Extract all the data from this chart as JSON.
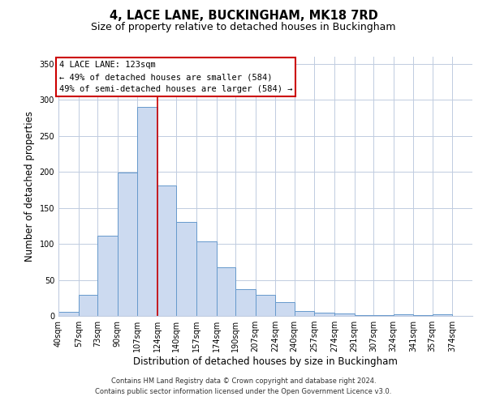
{
  "title": "4, LACE LANE, BUCKINGHAM, MK18 7RD",
  "subtitle": "Size of property relative to detached houses in Buckingham",
  "xlabel": "Distribution of detached houses by size in Buckingham",
  "ylabel": "Number of detached properties",
  "bin_labels": [
    "40sqm",
    "57sqm",
    "73sqm",
    "90sqm",
    "107sqm",
    "124sqm",
    "140sqm",
    "157sqm",
    "174sqm",
    "190sqm",
    "207sqm",
    "224sqm",
    "240sqm",
    "257sqm",
    "274sqm",
    "291sqm",
    "307sqm",
    "324sqm",
    "341sqm",
    "357sqm",
    "374sqm"
  ],
  "bin_edges": [
    40,
    57,
    73,
    90,
    107,
    124,
    140,
    157,
    174,
    190,
    207,
    224,
    240,
    257,
    274,
    291,
    307,
    324,
    341,
    357,
    374
  ],
  "bin_width": 17,
  "bar_heights": [
    6,
    29,
    111,
    199,
    290,
    181,
    130,
    103,
    68,
    37,
    29,
    19,
    7,
    5,
    3,
    1,
    1,
    2,
    1,
    2
  ],
  "bar_color": "#ccdaf0",
  "bar_edge_color": "#6699cc",
  "property_line_x": 124,
  "property_line_color": "#cc0000",
  "ylim": [
    0,
    360
  ],
  "yticks": [
    0,
    50,
    100,
    150,
    200,
    250,
    300,
    350
  ],
  "annotation_title": "4 LACE LANE: 123sqm",
  "annotation_line1": "← 49% of detached houses are smaller (584)",
  "annotation_line2": "49% of semi-detached houses are larger (584) →",
  "annotation_box_color": "#ffffff",
  "annotation_box_edge_color": "#cc0000",
  "footer_line1": "Contains HM Land Registry data © Crown copyright and database right 2024.",
  "footer_line2": "Contains public sector information licensed under the Open Government Licence v3.0.",
  "background_color": "#ffffff",
  "grid_color": "#c0cce0",
  "title_fontsize": 10.5,
  "subtitle_fontsize": 9,
  "axis_label_fontsize": 8.5,
  "tick_fontsize": 7,
  "annotation_fontsize": 7.5,
  "footer_fontsize": 6
}
